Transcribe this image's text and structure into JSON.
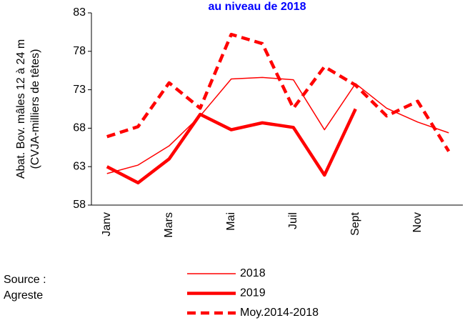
{
  "chart_data": {
    "type": "line",
    "title": "au niveau de 2018",
    "ylabel": [
      "Abat. Bov. mâles 12 à 24 m",
      "(CVJA-milliers de têtes)"
    ],
    "annotations": [
      "Source :",
      "Agreste"
    ],
    "categories": [
      "Janv",
      null,
      "Mars",
      null,
      "Mai",
      null,
      "Juil",
      null,
      "Sept",
      null,
      "Nov",
      null
    ],
    "ylim": [
      58,
      83
    ],
    "yticks": [
      58,
      63,
      68,
      73,
      78,
      83
    ],
    "series": [
      {
        "name": "2018",
        "color": "#ff0000",
        "linestyle": "thin",
        "values": [
          62.1,
          63.2,
          65.7,
          69.6,
          74.4,
          74.6,
          74.3,
          67.8,
          73.8,
          70.6,
          68.8,
          67.4
        ]
      },
      {
        "name": "2019",
        "color": "#ff0000",
        "linestyle": "thick",
        "values": [
          63.0,
          60.9,
          64.0,
          69.8,
          67.8,
          68.7,
          68.1,
          61.9,
          70.5,
          null,
          null,
          null
        ]
      },
      {
        "name": "Moy.2014-2018",
        "color": "#ff0000",
        "linestyle": "dashed",
        "values": [
          66.9,
          68.2,
          73.9,
          70.6,
          80.2,
          79.0,
          70.6,
          76.0,
          73.6,
          69.6,
          71.5,
          65.0
        ]
      }
    ]
  }
}
